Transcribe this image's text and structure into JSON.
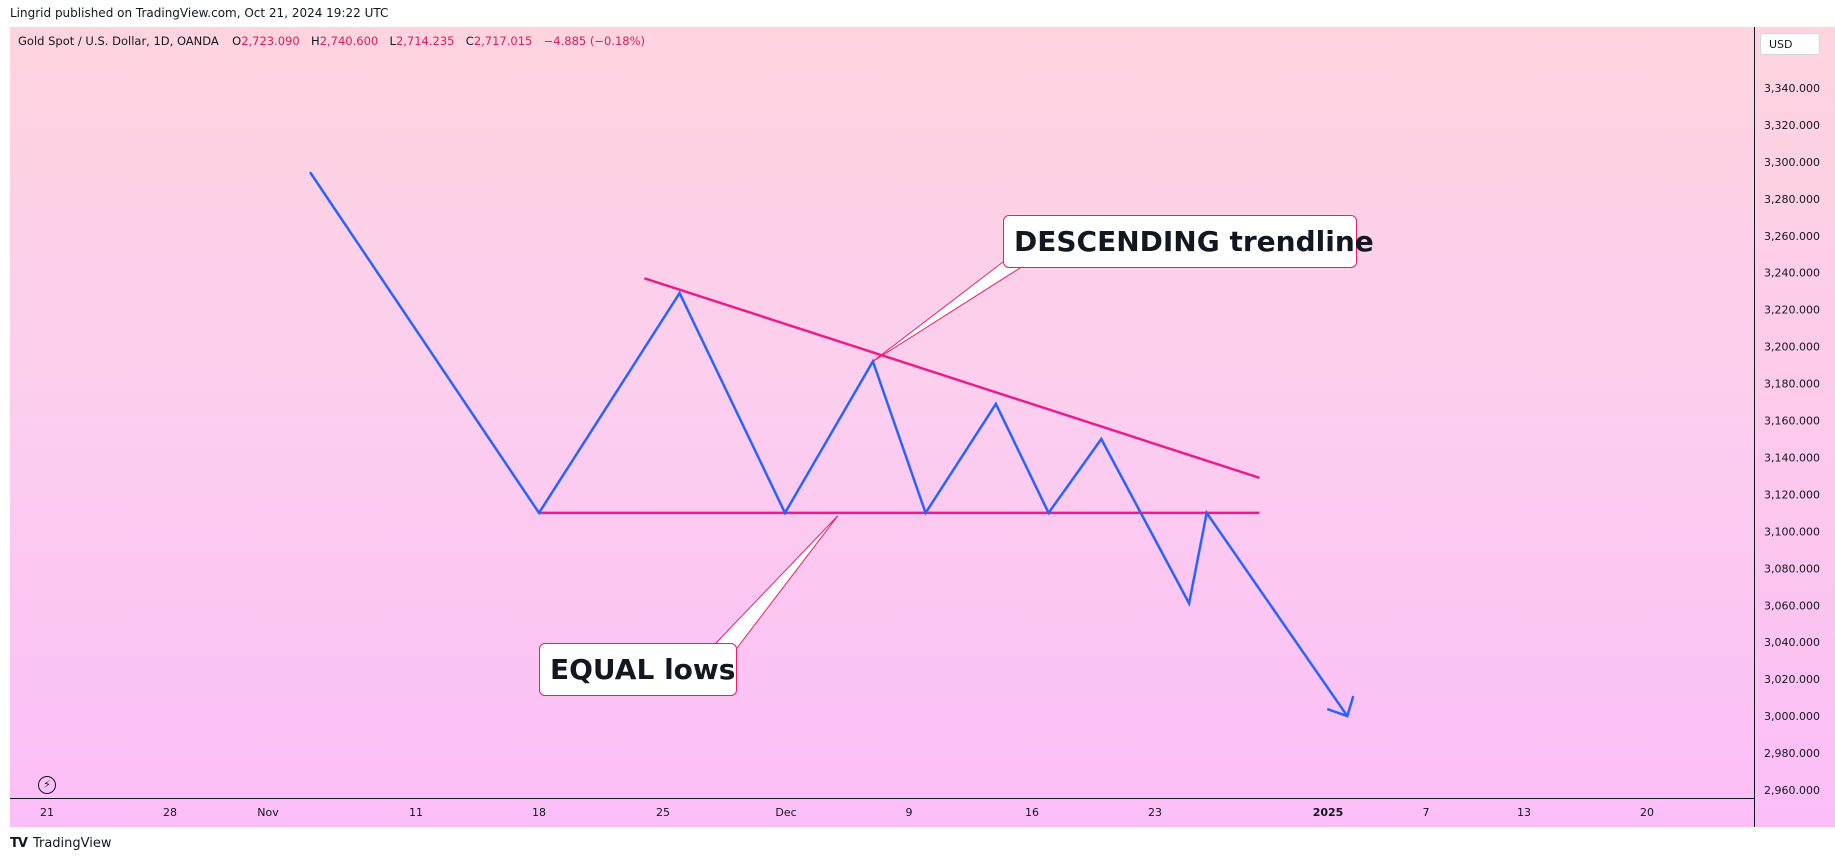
{
  "header": {
    "published_line": "Lingrid published on TradingView.com, Oct 21, 2024 19:22 UTC"
  },
  "legend": {
    "symbol": "Gold Spot / U.S. Dollar, 1D, OANDA",
    "o_key": "O",
    "o_val": "2,723.090",
    "h_key": "H",
    "h_val": "2,740.600",
    "l_key": "L",
    "l_val": "2,714.235",
    "c_key": "C",
    "c_val": "2,717.015",
    "change": "−4.885 (−0.18%)"
  },
  "price_scale": {
    "currency": "USD",
    "ticks": [
      "3,340.000",
      "3,320.000",
      "3,300.000",
      "3,280.000",
      "3,260.000",
      "3,240.000",
      "3,220.000",
      "3,200.000",
      "3,180.000",
      "3,160.000",
      "3,140.000",
      "3,120.000",
      "3,100.000",
      "3,080.000",
      "3,060.000",
      "3,040.000",
      "3,020.000",
      "3,000.000",
      "2,980.000",
      "2,960.000"
    ]
  },
  "time_scale": {
    "labels": [
      "21",
      "28",
      "Nov",
      "11",
      "18",
      "25",
      "Dec",
      "9",
      "16",
      "23",
      "2025",
      "7",
      "13",
      "20"
    ]
  },
  "brand": {
    "text": "TradingView",
    "logo": "TV"
  },
  "colors": {
    "path": "#2962ff",
    "trendline": "#e91e8c",
    "label_border": "#e91e63"
  },
  "icons": {
    "replay": "lightning-bolt-icon"
  },
  "chart_data": {
    "type": "line",
    "ylim": [
      2953,
      3352
    ],
    "x_axis": "date",
    "projected_path": [
      {
        "x": "2024-11-05",
        "y": 3294
      },
      {
        "x": "2024-11-18",
        "y": 3110
      },
      {
        "x": "2024-11-26",
        "y": 3229
      },
      {
        "x": "2024-12-02",
        "y": 3110
      },
      {
        "x": "2024-12-07",
        "y": 3192
      },
      {
        "x": "2024-12-10",
        "y": 3110
      },
      {
        "x": "2024-12-14",
        "y": 3169
      },
      {
        "x": "2024-12-17",
        "y": 3110
      },
      {
        "x": "2024-12-20",
        "y": 3150
      },
      {
        "x": "2024-12-25",
        "y": 3061
      },
      {
        "x": "2024-12-26",
        "y": 3110
      },
      {
        "x": "2025-01-03",
        "y": 3000
      }
    ],
    "descending_trendline": [
      {
        "x": "2024-11-24",
        "y": 3237
      },
      {
        "x": "2024-12-29",
        "y": 3129
      }
    ],
    "equal_lows_line": [
      {
        "x": "2024-11-18",
        "y": 3110
      },
      {
        "x": "2024-12-29",
        "y": 3110
      }
    ],
    "annotations": [
      {
        "text": "DESCENDING trendline",
        "anchor": {
          "x": "2024-12-07",
          "y": 3192
        }
      },
      {
        "text": "EQUAL lows",
        "anchor": {
          "x": "2024-12-05",
          "y": 3110
        }
      }
    ],
    "grid": false
  }
}
